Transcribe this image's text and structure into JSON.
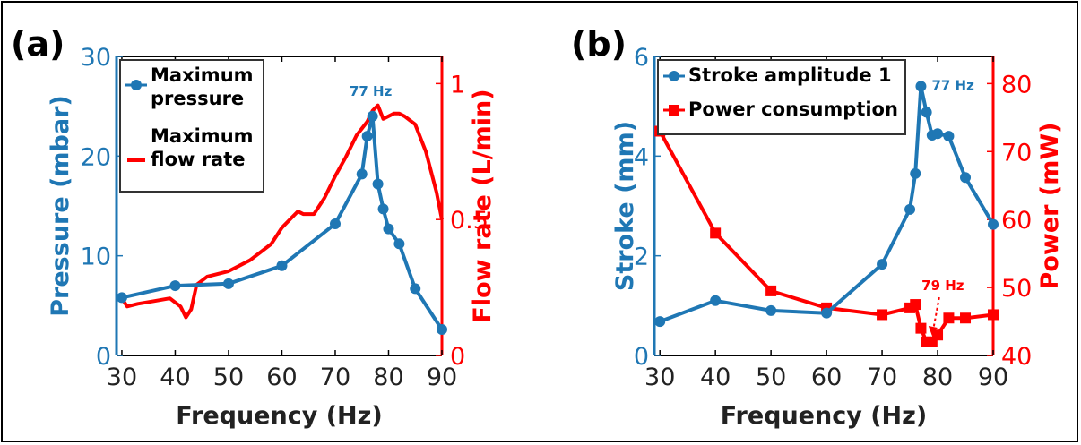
{
  "colors": {
    "blue": "#1f77b4",
    "red": "#ff0000",
    "axis": "#000000"
  },
  "chart_data": [
    {
      "type": "line",
      "panel_label": "(a)",
      "xlabel": "Frequency (Hz)",
      "ylabel_left": "Pressure (mbar)",
      "ylabel_right": "Flow rate (L/min)",
      "xlim": [
        29,
        90
      ],
      "ylim_left": [
        0,
        30
      ],
      "ylim_right": [
        0,
        1.1
      ],
      "xticks": [
        30,
        40,
        50,
        60,
        70,
        80,
        90
      ],
      "yticks_left": [
        0,
        10,
        20,
        30
      ],
      "yticks_right": [
        0,
        0.5,
        1
      ],
      "legend_position": "upper-left",
      "annotations": [
        {
          "text": "77 Hz",
          "x": 77,
          "y": 24,
          "axis": "left"
        }
      ],
      "series": [
        {
          "name": "Maximum pressure",
          "legend_lines": [
            "Maximum",
            "pressure"
          ],
          "axis": "left",
          "marker": "circle",
          "color": "blue",
          "x": [
            30,
            40,
            50,
            60,
            70,
            75,
            76,
            77,
            78,
            79,
            80,
            82,
            85,
            90
          ],
          "y": [
            5.8,
            7.0,
            7.2,
            9.0,
            13.2,
            18.2,
            22.0,
            24.0,
            17.2,
            14.7,
            12.7,
            11.2,
            6.7,
            2.6
          ]
        },
        {
          "name": "Maximum flow rate",
          "legend_lines": [
            "Maximum",
            "flow rate"
          ],
          "axis": "right",
          "marker": "none",
          "color": "red",
          "x": [
            30,
            31,
            33,
            36,
            39,
            41,
            42,
            43,
            44,
            46,
            48,
            50,
            52,
            54,
            56,
            58,
            60,
            62,
            63,
            64,
            66,
            68,
            70,
            72,
            74,
            76,
            77,
            78,
            79,
            80,
            81,
            82,
            83,
            85,
            87,
            89,
            90
          ],
          "y": [
            0.21,
            0.18,
            0.19,
            0.2,
            0.21,
            0.18,
            0.14,
            0.17,
            0.26,
            0.29,
            0.3,
            0.31,
            0.33,
            0.35,
            0.38,
            0.41,
            0.47,
            0.51,
            0.53,
            0.52,
            0.52,
            0.58,
            0.66,
            0.73,
            0.81,
            0.86,
            0.9,
            0.92,
            0.87,
            0.88,
            0.89,
            0.89,
            0.88,
            0.85,
            0.75,
            0.6,
            0.5
          ]
        }
      ]
    },
    {
      "type": "line",
      "panel_label": "(b)",
      "xlabel": "Frequency (Hz)",
      "ylabel_left": "Stroke (mm)",
      "ylabel_right": "Power (mW)",
      "xlim": [
        29,
        90
      ],
      "ylim_left": [
        0,
        6
      ],
      "ylim_right": [
        40,
        84
      ],
      "xticks": [
        30,
        40,
        50,
        60,
        70,
        80,
        90
      ],
      "yticks_left": [
        0,
        2,
        4,
        6
      ],
      "yticks_right": [
        40,
        50,
        60,
        70,
        80
      ],
      "legend_position": "upper-left",
      "annotations": [
        {
          "text": "77 Hz",
          "x": 77,
          "y": 5.4,
          "axis": "left"
        },
        {
          "text": "79 Hz",
          "x": 79,
          "y": 42.5,
          "axis": "right",
          "arrow": true
        }
      ],
      "series": [
        {
          "name": "Stroke amplitude 1",
          "legend_lines": [
            "Stroke amplitude 1"
          ],
          "axis": "left",
          "marker": "circle",
          "color": "blue",
          "x": [
            30,
            40,
            50,
            60,
            70,
            75,
            76,
            77,
            78,
            79,
            80,
            82,
            85,
            90
          ],
          "y": [
            0.68,
            1.1,
            0.9,
            0.85,
            1.83,
            2.93,
            3.65,
            5.4,
            4.88,
            4.42,
            4.45,
            4.4,
            3.57,
            2.63
          ]
        },
        {
          "name": "Power consumption",
          "legend_lines": [
            "Power consumption"
          ],
          "axis": "right",
          "marker": "square",
          "color": "red",
          "x": [
            30,
            40,
            50,
            60,
            70,
            75,
            76,
            77,
            78,
            79,
            80,
            82,
            85,
            90
          ],
          "y": [
            73,
            58,
            49.5,
            47,
            46,
            47,
            47.5,
            44,
            42,
            42,
            43,
            45.5,
            45.5,
            46
          ]
        }
      ]
    }
  ]
}
